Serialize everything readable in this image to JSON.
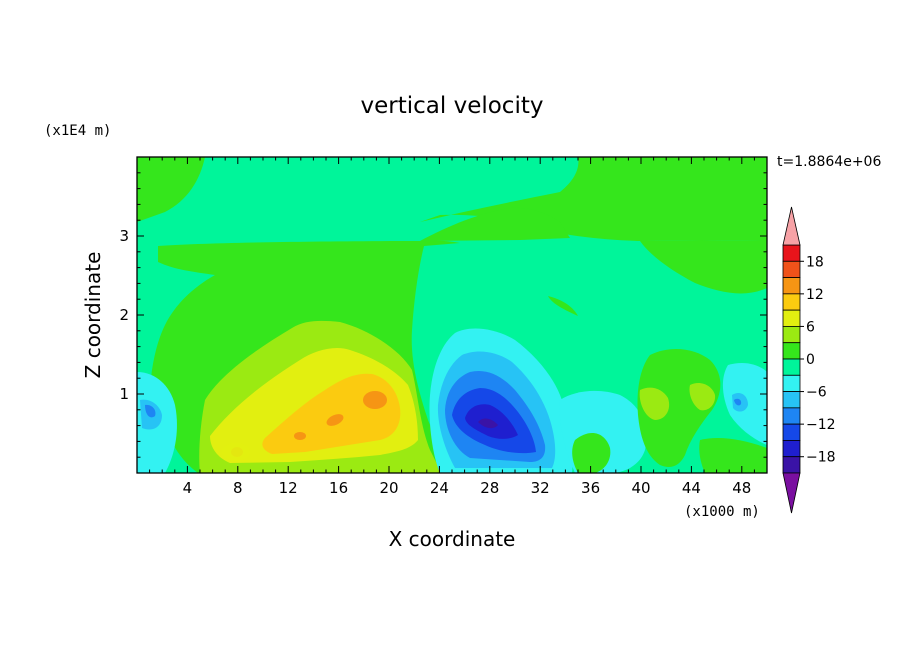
{
  "chart_data": {
    "type": "heatmap",
    "title": "vertical velocity",
    "xlabel": "X coordinate",
    "ylabel": "Z coordinate",
    "x_unit": "(x1000 m)",
    "y_unit": "(x1E4 m)",
    "time_label": "t=1.8864e+06",
    "xlim": [
      0,
      50
    ],
    "ylim": [
      0,
      4
    ],
    "x_ticks": [
      "4",
      "8",
      "12",
      "16",
      "20",
      "24",
      "28",
      "32",
      "36",
      "40",
      "44",
      "48"
    ],
    "y_ticks": [
      "1",
      "2",
      "3"
    ],
    "colorbar": {
      "tick_labels": [
        "18",
        "12",
        "6",
        "0",
        "−6",
        "−12",
        "−18"
      ],
      "levels": [
        -21,
        -18,
        -15,
        -12,
        -9,
        -6,
        -3,
        0,
        3,
        6,
        9,
        12,
        15,
        18,
        21
      ],
      "colors": [
        "#7a0fa0",
        "#3a13a6",
        "#1f1fcf",
        "#1548e8",
        "#1e85f3",
        "#27c3f5",
        "#33f2f2",
        "#00f59a",
        "#35e61c",
        "#9bea12",
        "#e2ef10",
        "#fbcb10",
        "#f69514",
        "#f0521a",
        "#e8141b",
        "#f7a2a6"
      ]
    },
    "features": [
      {
        "kind": "updraft",
        "x": 17.5,
        "z": 0.9,
        "peak": 12
      },
      {
        "kind": "downdraft",
        "x": 28.0,
        "z": 0.6,
        "peak": -15
      }
    ]
  }
}
